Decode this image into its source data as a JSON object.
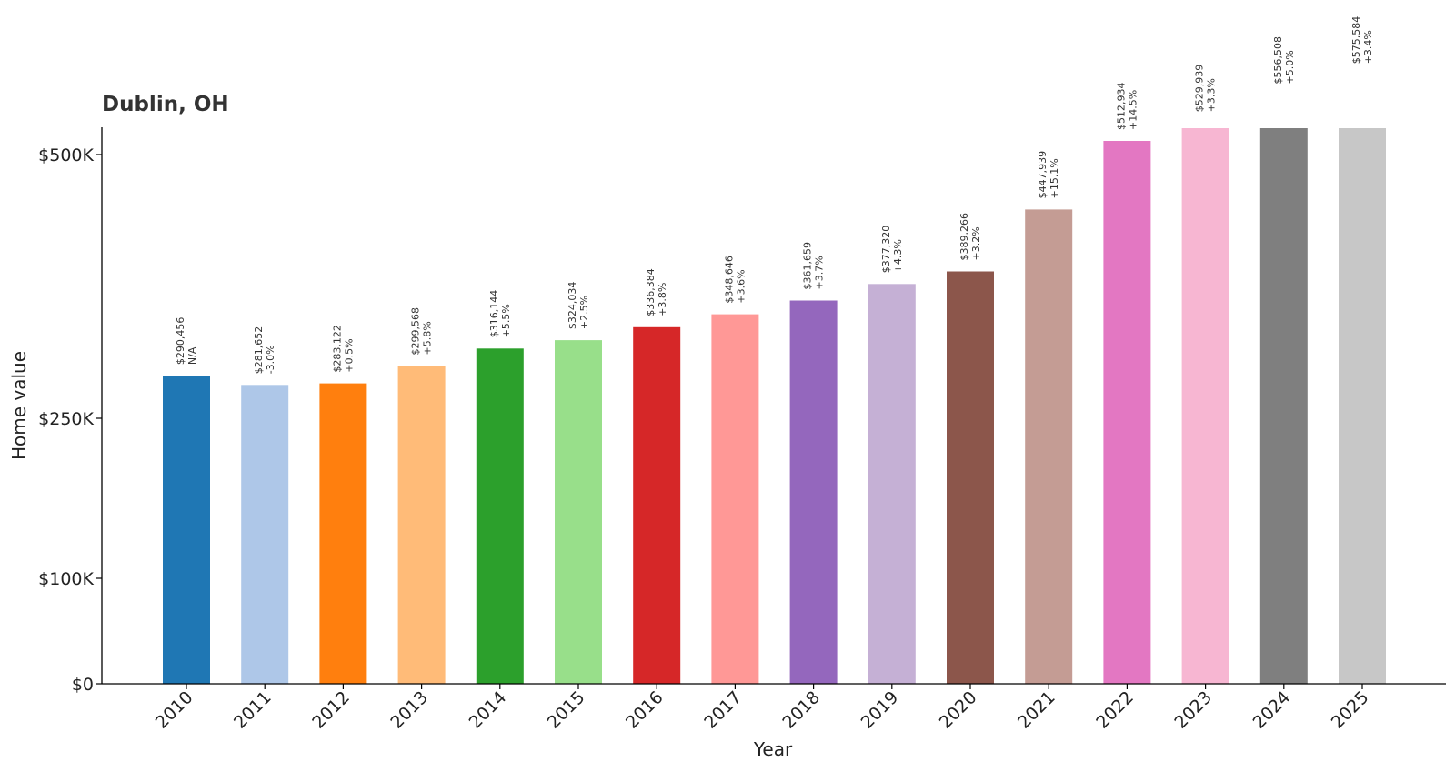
{
  "chart_data": {
    "type": "bar",
    "title": "Dublin, OH",
    "xlabel": "Year",
    "ylabel": "Home value",
    "categories": [
      "2010",
      "2011",
      "2012",
      "2013",
      "2014",
      "2015",
      "2016",
      "2017",
      "2018",
      "2019",
      "2020",
      "2021",
      "2022",
      "2023",
      "2024",
      "2025"
    ],
    "values": [
      290456,
      281652,
      283122,
      299568,
      316144,
      324034,
      336384,
      348646,
      361659,
      377320,
      389266,
      447939,
      512934,
      529939,
      556508,
      575584
    ],
    "value_labels": [
      "$290,456",
      "$281,652",
      "$283,122",
      "$299,568",
      "$316,144",
      "$324,034",
      "$336,384",
      "$348,646",
      "$361,659",
      "$377,320",
      "$389,266",
      "$447,939",
      "$512,934",
      "$529,939",
      "$556,508",
      "$575,584"
    ],
    "change_labels": [
      "N/A",
      "-3.0%",
      "+0.5%",
      "+5.8%",
      "+5.5%",
      "+2.5%",
      "+3.8%",
      "+3.6%",
      "+3.7%",
      "+4.3%",
      "+3.2%",
      "+15.1%",
      "+14.5%",
      "+3.3%",
      "+5.0%",
      "+3.4%"
    ],
    "colors": [
      "#1f77b4",
      "#aec7e8",
      "#ff7f0e",
      "#ffbb78",
      "#2ca02c",
      "#98df8a",
      "#d62728",
      "#ff9896",
      "#9467bd",
      "#c5b0d5",
      "#8c564b",
      "#c49c94",
      "#e377c2",
      "#f7b6d2",
      "#7f7f7f",
      "#c7c7c7"
    ],
    "y_ticks": [
      {
        "value": 0,
        "label": "$0"
      },
      {
        "value": 100000,
        "label": "$100K"
      },
      {
        "value": 250000,
        "label": "$250K"
      },
      {
        "value": 500000,
        "label": "$500K"
      }
    ],
    "ylim": [
      0,
      525000
    ],
    "grid": false,
    "legend": "none"
  }
}
